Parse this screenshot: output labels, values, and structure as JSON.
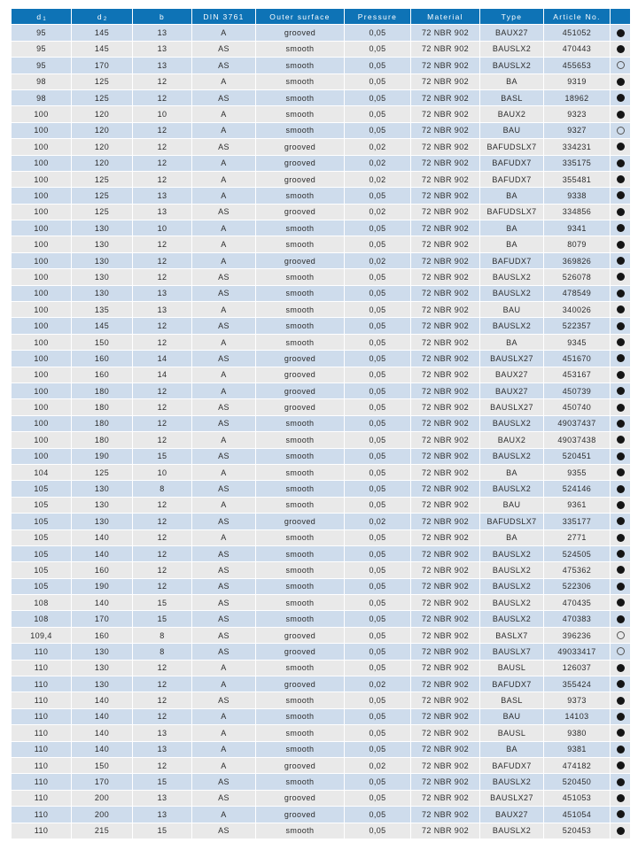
{
  "colors": {
    "header_bg": "#0e73b6",
    "header_text": "#ffffff",
    "row_blue": "#cedcec",
    "row_gray": "#e9e9e9",
    "dot_filled": "#151515"
  },
  "table": {
    "columns": [
      {
        "key": "d1",
        "label": "d",
        "sub": "1"
      },
      {
        "key": "d2",
        "label": "d",
        "sub": "2"
      },
      {
        "key": "b",
        "label": "b"
      },
      {
        "key": "din",
        "label": "DIN 3761"
      },
      {
        "key": "surface",
        "label": "Outer surface"
      },
      {
        "key": "pressure",
        "label": "Pressure"
      },
      {
        "key": "material",
        "label": "Material"
      },
      {
        "key": "type",
        "label": "Type"
      },
      {
        "key": "article",
        "label": "Article No."
      },
      {
        "key": "availability",
        "label": ""
      }
    ],
    "rows": [
      [
        "95",
        "145",
        "13",
        "A",
        "grooved",
        "0,05",
        "72 NBR 902",
        "BAUX27",
        "451052",
        "filled"
      ],
      [
        "95",
        "145",
        "13",
        "AS",
        "smooth",
        "0,05",
        "72 NBR 902",
        "BAUSLX2",
        "470443",
        "filled"
      ],
      [
        "95",
        "170",
        "13",
        "AS",
        "smooth",
        "0,05",
        "72 NBR 902",
        "BAUSLX2",
        "455653",
        "open"
      ],
      [
        "98",
        "125",
        "12",
        "A",
        "smooth",
        "0,05",
        "72 NBR 902",
        "BA",
        "9319",
        "filled"
      ],
      [
        "98",
        "125",
        "12",
        "AS",
        "smooth",
        "0,05",
        "72 NBR 902",
        "BASL",
        "18962",
        "filled"
      ],
      [
        "100",
        "120",
        "10",
        "A",
        "smooth",
        "0,05",
        "72 NBR 902",
        "BAUX2",
        "9323",
        "filled"
      ],
      [
        "100",
        "120",
        "12",
        "A",
        "smooth",
        "0,05",
        "72 NBR 902",
        "BAU",
        "9327",
        "open"
      ],
      [
        "100",
        "120",
        "12",
        "AS",
        "grooved",
        "0,02",
        "72 NBR 902",
        "BAFUDSLX7",
        "334231",
        "filled"
      ],
      [
        "100",
        "120",
        "12",
        "A",
        "grooved",
        "0,02",
        "72 NBR 902",
        "BAFUDX7",
        "335175",
        "filled"
      ],
      [
        "100",
        "125",
        "12",
        "A",
        "grooved",
        "0,02",
        "72 NBR 902",
        "BAFUDX7",
        "355481",
        "filled"
      ],
      [
        "100",
        "125",
        "13",
        "A",
        "smooth",
        "0,05",
        "72 NBR 902",
        "BA",
        "9338",
        "filled"
      ],
      [
        "100",
        "125",
        "13",
        "AS",
        "grooved",
        "0,02",
        "72 NBR 902",
        "BAFUDSLX7",
        "334856",
        "filled"
      ],
      [
        "100",
        "130",
        "10",
        "A",
        "smooth",
        "0,05",
        "72 NBR 902",
        "BA",
        "9341",
        "filled"
      ],
      [
        "100",
        "130",
        "12",
        "A",
        "smooth",
        "0,05",
        "72 NBR 902",
        "BA",
        "8079",
        "filled"
      ],
      [
        "100",
        "130",
        "12",
        "A",
        "grooved",
        "0,02",
        "72 NBR 902",
        "BAFUDX7",
        "369826",
        "filled"
      ],
      [
        "100",
        "130",
        "12",
        "AS",
        "smooth",
        "0,05",
        "72 NBR 902",
        "BAUSLX2",
        "526078",
        "filled"
      ],
      [
        "100",
        "130",
        "13",
        "AS",
        "smooth",
        "0,05",
        "72 NBR 902",
        "BAUSLX2",
        "478549",
        "filled"
      ],
      [
        "100",
        "135",
        "13",
        "A",
        "smooth",
        "0,05",
        "72 NBR 902",
        "BAU",
        "340026",
        "filled"
      ],
      [
        "100",
        "145",
        "12",
        "AS",
        "smooth",
        "0,05",
        "72 NBR 902",
        "BAUSLX2",
        "522357",
        "filled"
      ],
      [
        "100",
        "150",
        "12",
        "A",
        "smooth",
        "0,05",
        "72 NBR 902",
        "BA",
        "9345",
        "filled"
      ],
      [
        "100",
        "160",
        "14",
        "AS",
        "grooved",
        "0,05",
        "72 NBR 902",
        "BAUSLX27",
        "451670",
        "filled"
      ],
      [
        "100",
        "160",
        "14",
        "A",
        "grooved",
        "0,05",
        "72 NBR 902",
        "BAUX27",
        "453167",
        "filled"
      ],
      [
        "100",
        "180",
        "12",
        "A",
        "grooved",
        "0,05",
        "72 NBR 902",
        "BAUX27",
        "450739",
        "filled"
      ],
      [
        "100",
        "180",
        "12",
        "AS",
        "grooved",
        "0,05",
        "72 NBR 902",
        "BAUSLX27",
        "450740",
        "filled"
      ],
      [
        "100",
        "180",
        "12",
        "AS",
        "smooth",
        "0,05",
        "72 NBR 902",
        "BAUSLX2",
        "49037437",
        "filled"
      ],
      [
        "100",
        "180",
        "12",
        "A",
        "smooth",
        "0,05",
        "72 NBR 902",
        "BAUX2",
        "49037438",
        "filled"
      ],
      [
        "100",
        "190",
        "15",
        "AS",
        "smooth",
        "0,05",
        "72 NBR 902",
        "BAUSLX2",
        "520451",
        "filled"
      ],
      [
        "104",
        "125",
        "10",
        "A",
        "smooth",
        "0,05",
        "72 NBR 902",
        "BA",
        "9355",
        "filled"
      ],
      [
        "105",
        "130",
        "8",
        "AS",
        "smooth",
        "0,05",
        "72 NBR 902",
        "BAUSLX2",
        "524146",
        "filled"
      ],
      [
        "105",
        "130",
        "12",
        "A",
        "smooth",
        "0,05",
        "72 NBR 902",
        "BAU",
        "9361",
        "filled"
      ],
      [
        "105",
        "130",
        "12",
        "AS",
        "grooved",
        "0,02",
        "72 NBR 902",
        "BAFUDSLX7",
        "335177",
        "filled"
      ],
      [
        "105",
        "140",
        "12",
        "A",
        "smooth",
        "0,05",
        "72 NBR 902",
        "BA",
        "2771",
        "filled"
      ],
      [
        "105",
        "140",
        "12",
        "AS",
        "smooth",
        "0,05",
        "72 NBR 902",
        "BAUSLX2",
        "524505",
        "filled"
      ],
      [
        "105",
        "160",
        "12",
        "AS",
        "smooth",
        "0,05",
        "72 NBR 902",
        "BAUSLX2",
        "475362",
        "filled"
      ],
      [
        "105",
        "190",
        "12",
        "AS",
        "smooth",
        "0,05",
        "72 NBR 902",
        "BAUSLX2",
        "522306",
        "filled"
      ],
      [
        "108",
        "140",
        "15",
        "AS",
        "smooth",
        "0,05",
        "72 NBR 902",
        "BAUSLX2",
        "470435",
        "filled"
      ],
      [
        "108",
        "170",
        "15",
        "AS",
        "smooth",
        "0,05",
        "72 NBR 902",
        "BAUSLX2",
        "470383",
        "filled"
      ],
      [
        "109,4",
        "160",
        "8",
        "AS",
        "grooved",
        "0,05",
        "72 NBR 902",
        "BASLX7",
        "396236",
        "open"
      ],
      [
        "110",
        "130",
        "8",
        "AS",
        "grooved",
        "0,05",
        "72 NBR 902",
        "BAUSLX7",
        "49033417",
        "open"
      ],
      [
        "110",
        "130",
        "12",
        "A",
        "smooth",
        "0,05",
        "72 NBR 902",
        "BAUSL",
        "126037",
        "filled"
      ],
      [
        "110",
        "130",
        "12",
        "A",
        "grooved",
        "0,02",
        "72 NBR 902",
        "BAFUDX7",
        "355424",
        "filled"
      ],
      [
        "110",
        "140",
        "12",
        "AS",
        "smooth",
        "0,05",
        "72 NBR 902",
        "BASL",
        "9373",
        "filled"
      ],
      [
        "110",
        "140",
        "12",
        "A",
        "smooth",
        "0,05",
        "72 NBR 902",
        "BAU",
        "14103",
        "filled"
      ],
      [
        "110",
        "140",
        "13",
        "A",
        "smooth",
        "0,05",
        "72 NBR 902",
        "BAUSL",
        "9380",
        "filled"
      ],
      [
        "110",
        "140",
        "13",
        "A",
        "smooth",
        "0,05",
        "72 NBR 902",
        "BA",
        "9381",
        "filled"
      ],
      [
        "110",
        "150",
        "12",
        "A",
        "grooved",
        "0,02",
        "72 NBR 902",
        "BAFUDX7",
        "474182",
        "filled"
      ],
      [
        "110",
        "170",
        "15",
        "AS",
        "smooth",
        "0,05",
        "72 NBR 902",
        "BAUSLX2",
        "520450",
        "filled"
      ],
      [
        "110",
        "200",
        "13",
        "AS",
        "grooved",
        "0,05",
        "72 NBR 902",
        "BAUSLX27",
        "451053",
        "filled"
      ],
      [
        "110",
        "200",
        "13",
        "A",
        "grooved",
        "0,05",
        "72 NBR 902",
        "BAUX27",
        "451054",
        "filled"
      ],
      [
        "110",
        "215",
        "15",
        "AS",
        "smooth",
        "0,05",
        "72 NBR 902",
        "BAUSLX2",
        "520453",
        "filled"
      ]
    ]
  }
}
